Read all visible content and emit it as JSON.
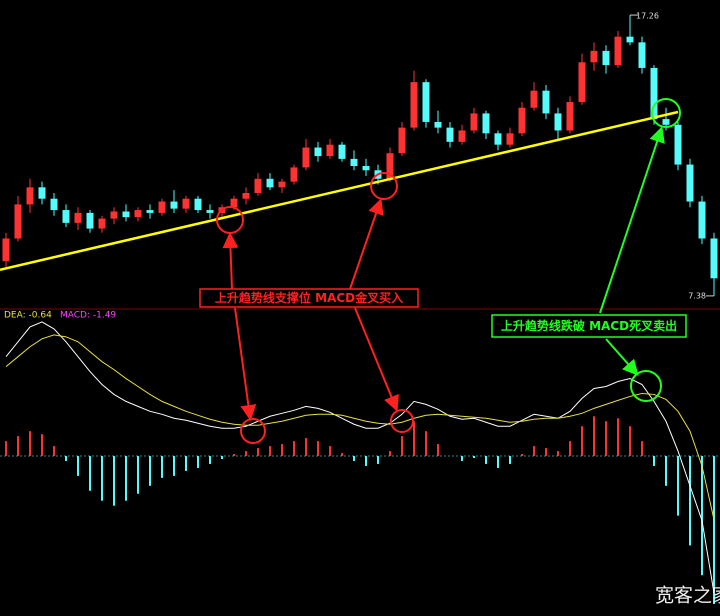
{
  "chart_data": {
    "type": "candlestick",
    "ylim": [
      7.06,
      17.79
    ],
    "up_color": "#ff3232",
    "down_color": "#54fcfc",
    "high_label": 17.26,
    "low_label": 7.38,
    "candles": [
      [
        8.6,
        9.6,
        8.4,
        9.4
      ],
      [
        9.4,
        10.9,
        9.3,
        10.6
      ],
      [
        10.6,
        11.5,
        10.3,
        11.2
      ],
      [
        11.2,
        11.4,
        10.6,
        10.8
      ],
      [
        10.8,
        11.0,
        10.2,
        10.4
      ],
      [
        10.4,
        10.6,
        9.8,
        9.95
      ],
      [
        9.95,
        10.5,
        9.7,
        10.3
      ],
      [
        10.3,
        10.4,
        9.6,
        9.75
      ],
      [
        9.75,
        10.2,
        9.6,
        10.1
      ],
      [
        10.1,
        10.5,
        9.9,
        10.35
      ],
      [
        10.35,
        10.6,
        10.0,
        10.15
      ],
      [
        10.15,
        10.5,
        10.0,
        10.4
      ],
      [
        10.4,
        10.6,
        10.1,
        10.3
      ],
      [
        10.3,
        10.8,
        10.2,
        10.7
      ],
      [
        10.7,
        11.1,
        10.3,
        10.45
      ],
      [
        10.45,
        10.9,
        10.3,
        10.8
      ],
      [
        10.8,
        10.9,
        10.3,
        10.4
      ],
      [
        10.4,
        10.6,
        10.1,
        10.3
      ],
      [
        10.3,
        10.6,
        10.1,
        10.5
      ],
      [
        10.5,
        10.9,
        10.4,
        10.8
      ],
      [
        10.8,
        11.2,
        10.6,
        11.0
      ],
      [
        11.0,
        11.7,
        10.9,
        11.5
      ],
      [
        11.5,
        11.7,
        11.1,
        11.2
      ],
      [
        11.2,
        11.5,
        11.0,
        11.4
      ],
      [
        11.4,
        12.0,
        11.3,
        11.9
      ],
      [
        11.9,
        12.9,
        11.8,
        12.6
      ],
      [
        12.6,
        12.8,
        12.1,
        12.3
      ],
      [
        12.3,
        12.9,
        12.2,
        12.7
      ],
      [
        12.7,
        12.8,
        12.1,
        12.2
      ],
      [
        12.2,
        12.5,
        11.8,
        11.95
      ],
      [
        11.95,
        12.2,
        11.6,
        11.8
      ],
      [
        11.8,
        12.0,
        11.3,
        11.5
      ],
      [
        11.5,
        12.6,
        11.4,
        12.4
      ],
      [
        12.4,
        13.5,
        12.3,
        13.3
      ],
      [
        13.3,
        15.3,
        13.2,
        14.9
      ],
      [
        14.9,
        15.0,
        13.3,
        13.5
      ],
      [
        13.5,
        13.9,
        13.1,
        13.3
      ],
      [
        13.3,
        13.5,
        12.6,
        12.8
      ],
      [
        12.8,
        13.4,
        12.7,
        13.2
      ],
      [
        13.2,
        14.0,
        13.1,
        13.8
      ],
      [
        13.8,
        13.9,
        12.9,
        13.1
      ],
      [
        13.1,
        13.2,
        12.5,
        12.7
      ],
      [
        12.7,
        13.3,
        12.6,
        13.1
      ],
      [
        13.1,
        14.2,
        13.0,
        14.0
      ],
      [
        14.0,
        14.9,
        13.9,
        14.6
      ],
      [
        14.6,
        14.8,
        13.6,
        13.8
      ],
      [
        13.8,
        14.0,
        12.9,
        13.2
      ],
      [
        13.2,
        14.4,
        13.1,
        14.2
      ],
      [
        14.2,
        15.9,
        14.1,
        15.6
      ],
      [
        15.6,
        16.3,
        15.3,
        16.0
      ],
      [
        16.0,
        16.2,
        15.2,
        15.5
      ],
      [
        15.5,
        16.7,
        15.4,
        16.5
      ],
      [
        16.5,
        17.26,
        16.2,
        16.3
      ],
      [
        16.3,
        16.5,
        15.2,
        15.4
      ],
      [
        15.4,
        15.5,
        13.4,
        13.6
      ],
      [
        13.6,
        14.0,
        13.2,
        13.4
      ],
      [
        13.4,
        13.5,
        11.8,
        12.0
      ],
      [
        12.0,
        12.2,
        10.5,
        10.7
      ],
      [
        10.7,
        10.9,
        9.2,
        9.4
      ],
      [
        9.4,
        9.6,
        7.38,
        8.0
      ]
    ],
    "trendline": {
      "x": [
        0,
        56
      ],
      "values": [
        8.3,
        13.85
      ],
      "color": "#ffff00"
    },
    "indicator": {
      "ylim": [
        -1.5,
        1.45
      ],
      "labels": [
        "DEA: -0.64",
        "MACD: -1.49"
      ],
      "macd": {
        "up_color": "#ff3232",
        "down_color": "#54fcfc",
        "values": [
          0.15,
          0.2,
          0.25,
          0.22,
          0.1,
          -0.05,
          -0.2,
          -0.35,
          -0.45,
          -0.5,
          -0.45,
          -0.38,
          -0.3,
          -0.22,
          -0.2,
          -0.15,
          -0.12,
          -0.08,
          -0.03,
          0.02,
          0.05,
          0.08,
          0.1,
          0.12,
          0.15,
          0.18,
          0.15,
          0.1,
          0.03,
          -0.05,
          -0.1,
          -0.08,
          0.05,
          0.2,
          0.35,
          0.25,
          0.12,
          0.0,
          -0.05,
          -0.02,
          -0.08,
          -0.12,
          -0.08,
          0.02,
          0.1,
          0.08,
          0.05,
          0.15,
          0.3,
          0.4,
          0.35,
          0.38,
          0.3,
          0.15,
          -0.1,
          -0.3,
          -0.6,
          -0.9,
          -1.2,
          -1.49
        ]
      },
      "dif": {
        "color": "#ffffff",
        "values": [
          1.0,
          1.15,
          1.3,
          1.35,
          1.28,
          1.15,
          1.0,
          0.85,
          0.72,
          0.62,
          0.55,
          0.5,
          0.45,
          0.42,
          0.38,
          0.36,
          0.33,
          0.3,
          0.28,
          0.28,
          0.3,
          0.35,
          0.4,
          0.43,
          0.46,
          0.5,
          0.48,
          0.44,
          0.38,
          0.32,
          0.28,
          0.28,
          0.33,
          0.42,
          0.55,
          0.52,
          0.47,
          0.4,
          0.37,
          0.38,
          0.34,
          0.3,
          0.3,
          0.36,
          0.42,
          0.4,
          0.38,
          0.45,
          0.58,
          0.68,
          0.7,
          0.75,
          0.78,
          0.72,
          0.55,
          0.35,
          0.05,
          -0.3,
          -0.65,
          -1.38
        ]
      },
      "dea": {
        "color": "#e8e040",
        "values": [
          0.9,
          1.0,
          1.1,
          1.18,
          1.22,
          1.2,
          1.15,
          1.05,
          0.95,
          0.87,
          0.78,
          0.7,
          0.62,
          0.55,
          0.5,
          0.45,
          0.41,
          0.37,
          0.34,
          0.32,
          0.31,
          0.31,
          0.33,
          0.35,
          0.38,
          0.41,
          0.42,
          0.42,
          0.41,
          0.38,
          0.35,
          0.33,
          0.32,
          0.34,
          0.38,
          0.41,
          0.42,
          0.41,
          0.4,
          0.39,
          0.38,
          0.36,
          0.34,
          0.35,
          0.37,
          0.38,
          0.38,
          0.4,
          0.43,
          0.48,
          0.52,
          0.56,
          0.6,
          0.63,
          0.62,
          0.57,
          0.45,
          0.25,
          -0.1,
          -0.64
        ]
      }
    },
    "annotations": [
      "上升趋势线支撑位 MACD金叉买入",
      "上升趋势线跌破 MACD死叉卖出"
    ],
    "watermark": "宽客之家"
  }
}
